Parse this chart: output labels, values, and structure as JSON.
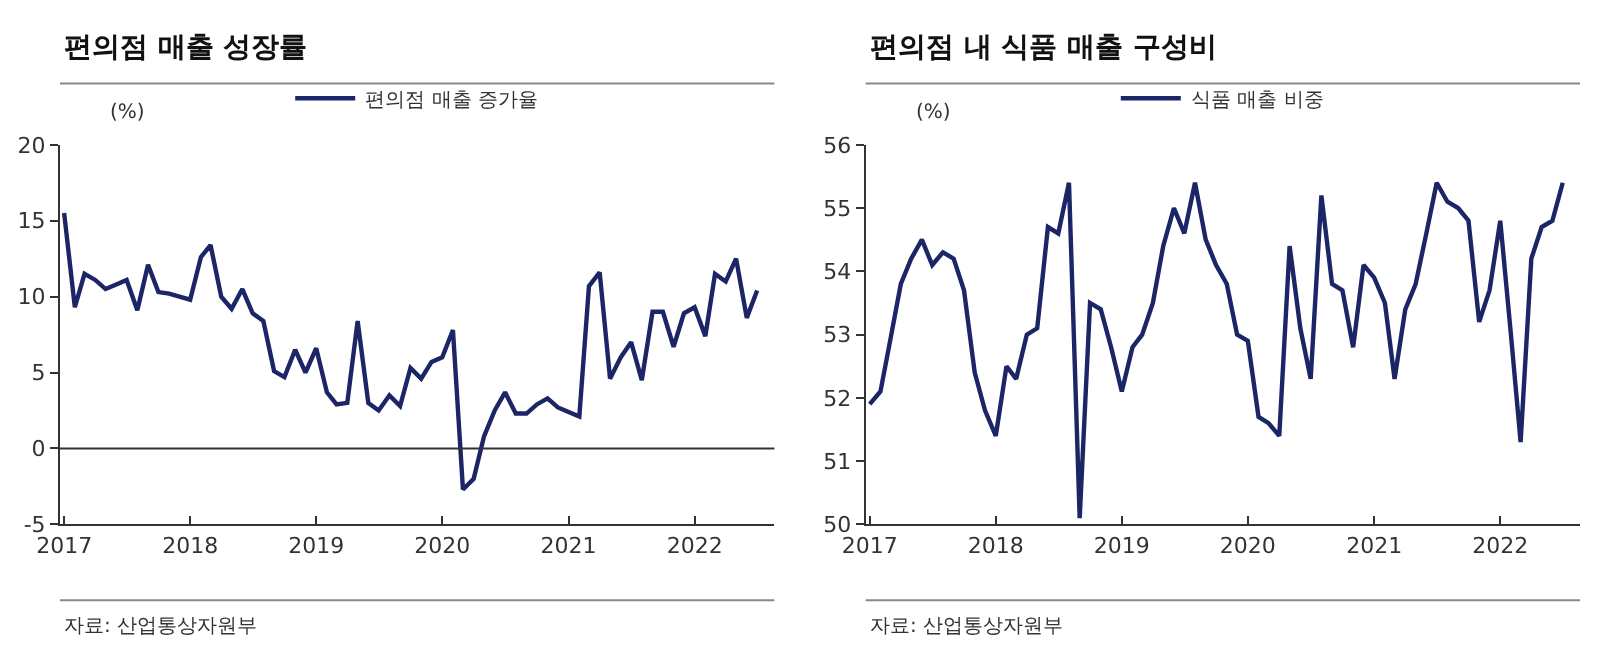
{
  "chart_data": [
    {
      "type": "line",
      "title": "편의점 매출 성장률",
      "ylabel": "(%)",
      "legend": "top",
      "marker": "none",
      "line_style": "solid",
      "x": [
        "2017-01",
        "2017-02",
        "2017-03",
        "2017-04",
        "2017-05",
        "2017-06",
        "2017-07",
        "2017-08",
        "2017-09",
        "2017-10",
        "2017-11",
        "2017-12",
        "2018-01",
        "2018-02",
        "2018-03",
        "2018-04",
        "2018-05",
        "2018-06",
        "2018-07",
        "2018-08",
        "2018-09",
        "2018-10",
        "2018-11",
        "2018-12",
        "2019-01",
        "2019-02",
        "2019-03",
        "2019-04",
        "2019-05",
        "2019-06",
        "2019-07",
        "2019-08",
        "2019-09",
        "2019-10",
        "2019-11",
        "2019-12",
        "2020-01",
        "2020-02",
        "2020-03",
        "2020-04",
        "2020-05",
        "2020-06",
        "2020-07",
        "2020-08",
        "2020-09",
        "2020-10",
        "2020-11",
        "2020-12",
        "2021-01",
        "2021-02",
        "2021-03",
        "2021-04",
        "2021-05",
        "2021-06",
        "2021-07",
        "2021-08",
        "2021-09",
        "2021-10",
        "2021-11",
        "2021-12",
        "2022-01",
        "2022-02",
        "2022-03",
        "2022-04",
        "2022-05",
        "2022-06",
        "2022-07"
      ],
      "series": [
        {
          "name": "편의점 매출 증가율",
          "color": "#1c2566",
          "values": [
            15.5,
            9.3,
            11.5,
            11.1,
            10.5,
            10.8,
            11.1,
            9.1,
            12.1,
            10.3,
            10.2,
            10.0,
            9.8,
            12.6,
            13.4,
            10.0,
            9.2,
            10.5,
            8.9,
            8.4,
            5.1,
            4.7,
            6.5,
            5.0,
            6.6,
            3.7,
            2.9,
            3.0,
            8.4,
            3.0,
            2.5,
            3.5,
            2.8,
            5.3,
            4.6,
            5.7,
            6.0,
            7.8,
            -2.7,
            -2.0,
            0.8,
            2.5,
            3.7,
            2.3,
            2.3,
            2.9,
            3.3,
            2.7,
            2.4,
            2.1,
            10.7,
            11.6,
            4.6,
            6.0,
            7.0,
            4.5,
            9.0,
            9.0,
            6.7,
            8.9,
            9.3,
            7.4,
            11.5,
            11.0,
            12.5,
            8.6,
            10.4
          ]
        }
      ],
      "xlim": [
        "2016-12-20",
        "2022-08-20"
      ],
      "xticks": [
        {
          "value": "2017-01-01",
          "label": "2017"
        },
        {
          "value": "2018-01-01",
          "label": "2018"
        },
        {
          "value": "2019-01-01",
          "label": "2019"
        },
        {
          "value": "2020-01-01",
          "label": "2020"
        },
        {
          "value": "2021-01-01",
          "label": "2021"
        },
        {
          "value": "2022-01-01",
          "label": "2022"
        }
      ],
      "ylim": [
        -5,
        20
      ],
      "yticks": [
        -5,
        0,
        5,
        10,
        15,
        20
      ],
      "ref_lines": [
        {
          "axis": "y",
          "value": 0,
          "label": null,
          "color": "#333333"
        }
      ],
      "annotations": [
        "자료: 산업통상자원부"
      ]
    },
    {
      "type": "line",
      "title": "편의점 내 식품 매출 구성비",
      "ylabel": "(%)",
      "legend": "top",
      "marker": "none",
      "line_style": "solid",
      "x": [
        "2017-01",
        "2017-02",
        "2017-03",
        "2017-04",
        "2017-05",
        "2017-06",
        "2017-07",
        "2017-08",
        "2017-09",
        "2017-10",
        "2017-11",
        "2017-12",
        "2018-01",
        "2018-02",
        "2018-03",
        "2018-04",
        "2018-05",
        "2018-06",
        "2018-07",
        "2018-08",
        "2018-09",
        "2018-10",
        "2018-11",
        "2018-12",
        "2019-01",
        "2019-02",
        "2019-03",
        "2019-04",
        "2019-05",
        "2019-06",
        "2019-07",
        "2019-08",
        "2019-09",
        "2019-10",
        "2019-11",
        "2019-12",
        "2020-01",
        "2020-02",
        "2020-03",
        "2020-04",
        "2020-05",
        "2020-06",
        "2020-07",
        "2020-08",
        "2020-09",
        "2020-10",
        "2020-11",
        "2020-12",
        "2021-01",
        "2021-02",
        "2021-03",
        "2021-04",
        "2021-05",
        "2021-06",
        "2021-07",
        "2021-08",
        "2021-09",
        "2021-10",
        "2021-11",
        "2021-12",
        "2022-01",
        "2022-02",
        "2022-03",
        "2022-04",
        "2022-05",
        "2022-06",
        "2022-07"
      ],
      "series": [
        {
          "name": "식품 매출 비중",
          "color": "#1c2566",
          "values": [
            51.9,
            52.1,
            52.9,
            53.8,
            54.2,
            54.5,
            54.1,
            54.3,
            54.2,
            53.7,
            52.4,
            51.8,
            51.4,
            52.5,
            52.3,
            53.0,
            53.1,
            54.7,
            54.6,
            55.4,
            50.1,
            53.5,
            53.4,
            52.8,
            52.1,
            52.8,
            53.0,
            53.5,
            54.4,
            55.0,
            54.6,
            55.4,
            54.5,
            54.1,
            53.8,
            53.0,
            52.9,
            51.7,
            51.6,
            51.4,
            54.4,
            53.1,
            52.3,
            55.2,
            53.8,
            53.7,
            52.8,
            54.1,
            53.9,
            53.5,
            52.3,
            53.4,
            53.8,
            54.6,
            55.4,
            55.1,
            55.0,
            54.8,
            53.2,
            53.7,
            54.8,
            53.0,
            51.3,
            54.2,
            54.7,
            54.8,
            55.4
          ]
        }
      ],
      "xlim": [
        "2016-12-20",
        "2022-08-20"
      ],
      "xticks": [
        {
          "value": "2017-01-01",
          "label": "2017"
        },
        {
          "value": "2018-01-01",
          "label": "2018"
        },
        {
          "value": "2019-01-01",
          "label": "2019"
        },
        {
          "value": "2020-01-01",
          "label": "2020"
        },
        {
          "value": "2021-01-01",
          "label": "2021"
        },
        {
          "value": "2022-01-01",
          "label": "2022"
        }
      ],
      "ylim": [
        50,
        56
      ],
      "yticks": [
        50,
        51,
        52,
        53,
        54,
        55,
        56
      ],
      "annotations": [
        "자료: 산업통상자원부"
      ]
    }
  ]
}
